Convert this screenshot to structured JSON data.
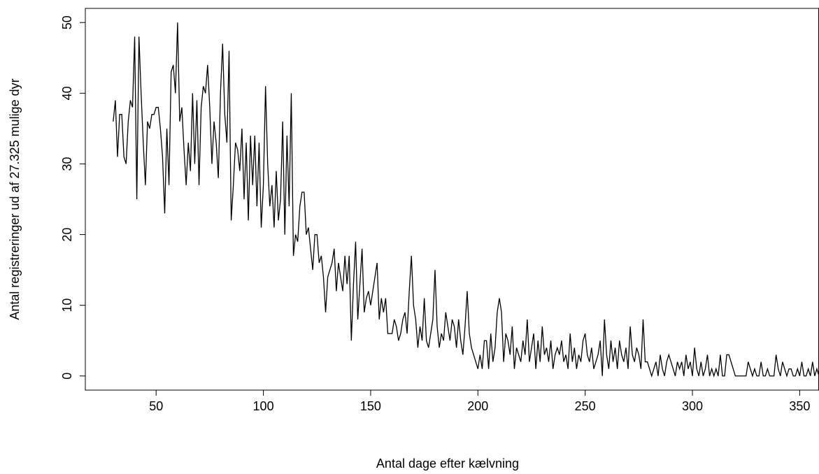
{
  "chart_data": {
    "type": "line",
    "x_label": "Antal dage efter kælvning",
    "y_label": "Antal registreringer ud af 27.325 mulige dyr",
    "x": [
      30,
      31,
      32,
      33,
      34,
      35,
      36,
      37,
      38,
      39,
      40,
      41,
      42,
      43,
      44,
      45,
      46,
      47,
      48,
      49,
      50,
      51,
      52,
      53,
      54,
      55,
      56,
      57,
      58,
      59,
      60,
      61,
      62,
      63,
      64,
      65,
      66,
      67,
      68,
      69,
      70,
      71,
      72,
      73,
      74,
      75,
      76,
      77,
      78,
      79,
      80,
      81,
      82,
      83,
      84,
      85,
      86,
      87,
      88,
      89,
      90,
      91,
      92,
      93,
      94,
      95,
      96,
      97,
      98,
      99,
      100,
      101,
      102,
      103,
      104,
      105,
      106,
      107,
      108,
      109,
      110,
      111,
      112,
      113,
      114,
      115,
      116,
      117,
      118,
      119,
      120,
      121,
      122,
      123,
      124,
      125,
      126,
      127,
      128,
      129,
      130,
      131,
      132,
      133,
      134,
      135,
      136,
      137,
      138,
      139,
      140,
      141,
      142,
      143,
      144,
      145,
      146,
      147,
      148,
      149,
      150,
      151,
      152,
      153,
      154,
      155,
      156,
      157,
      158,
      159,
      160,
      161,
      162,
      163,
      164,
      165,
      166,
      167,
      168,
      169,
      170,
      171,
      172,
      173,
      174,
      175,
      176,
      177,
      178,
      179,
      180,
      181,
      182,
      183,
      184,
      185,
      186,
      187,
      188,
      189,
      190,
      191,
      192,
      193,
      194,
      195,
      196,
      197,
      198,
      199,
      200,
      201,
      202,
      203,
      204,
      205,
      206,
      207,
      208,
      209,
      210,
      211,
      212,
      213,
      214,
      215,
      216,
      217,
      218,
      219,
      220,
      221,
      222,
      223,
      224,
      225,
      226,
      227,
      228,
      229,
      230,
      231,
      232,
      233,
      234,
      235,
      236,
      237,
      238,
      239,
      240,
      241,
      242,
      243,
      244,
      245,
      246,
      247,
      248,
      249,
      250,
      251,
      252,
      253,
      254,
      255,
      256,
      257,
      258,
      259,
      260,
      261,
      262,
      263,
      264,
      265,
      266,
      267,
      268,
      269,
      270,
      271,
      272,
      273,
      274,
      275,
      276,
      277,
      278,
      279,
      280,
      281,
      282,
      283,
      284,
      285,
      286,
      287,
      288,
      289,
      290,
      291,
      292,
      293,
      294,
      295,
      296,
      297,
      298,
      299,
      300,
      301,
      302,
      303,
      304,
      305,
      306,
      307,
      308,
      309,
      310,
      311,
      312,
      313,
      314,
      315,
      316,
      317,
      318,
      319,
      320,
      321,
      322,
      323,
      324,
      325,
      326,
      327,
      328,
      329,
      330,
      331,
      332,
      333,
      334,
      335,
      336,
      337,
      338,
      339,
      340,
      341,
      342,
      343,
      344,
      345,
      346,
      347,
      348,
      349,
      350,
      351,
      352,
      353,
      354,
      355,
      356,
      357,
      358,
      359
    ],
    "values": [
      36,
      39,
      31,
      37,
      37,
      31,
      30,
      36,
      39,
      38,
      48,
      25,
      48,
      40,
      33,
      27,
      36,
      35,
      37,
      37,
      38,
      38,
      35,
      31,
      23,
      35,
      27,
      43,
      44,
      40,
      50,
      36,
      38,
      32,
      27,
      33,
      29,
      40,
      30,
      39,
      27,
      38,
      41,
      40,
      44,
      38,
      30,
      36,
      33,
      28,
      40,
      47,
      37,
      33,
      46,
      22,
      27,
      33,
      32,
      29,
      35,
      25,
      33,
      22,
      34,
      27,
      34,
      24,
      33,
      21,
      27,
      41,
      30,
      24,
      27,
      21,
      29,
      22,
      25,
      36,
      20,
      34,
      24,
      40,
      17,
      20,
      19,
      24,
      26,
      26,
      20,
      21,
      18,
      15,
      20,
      20,
      16,
      17,
      14,
      9,
      14,
      15,
      16,
      18,
      12,
      16,
      14,
      12,
      17,
      13,
      17,
      5,
      13,
      19,
      8,
      13,
      18,
      9,
      11,
      12,
      10,
      12,
      14,
      16,
      8,
      11,
      9,
      11,
      6,
      6,
      6,
      8,
      7,
      5,
      6,
      8,
      9,
      6,
      12,
      17,
      10,
      8,
      4,
      7,
      5,
      11,
      5,
      4,
      6,
      8,
      15,
      7,
      4,
      6,
      5,
      9,
      7,
      5,
      8,
      7,
      4,
      8,
      5,
      3,
      7,
      12,
      6,
      4,
      3,
      2,
      1,
      3,
      1,
      5,
      5,
      1,
      6,
      2,
      4,
      9,
      11,
      9,
      2,
      6,
      5,
      3,
      7,
      1,
      4,
      3,
      2,
      5,
      3,
      8,
      2,
      4,
      6,
      1,
      5,
      2,
      7,
      3,
      4,
      2,
      5,
      1,
      3,
      4,
      3,
      5,
      2,
      3,
      1,
      6,
      2,
      4,
      1,
      3,
      2,
      5,
      6,
      3,
      2,
      4,
      1,
      2,
      3,
      5,
      0,
      8,
      3,
      1,
      5,
      2,
      4,
      1,
      5,
      3,
      2,
      4,
      1,
      7,
      3,
      2,
      4,
      3,
      1,
      8,
      2,
      2,
      1,
      0,
      1,
      2,
      0,
      3,
      1,
      0,
      2,
      3,
      2,
      1,
      0,
      2,
      1,
      2,
      0,
      3,
      1,
      2,
      0,
      4,
      1,
      0,
      2,
      0,
      1,
      3,
      0,
      1,
      0,
      1,
      0,
      3,
      0,
      0,
      3,
      3,
      2,
      1,
      0,
      0,
      0,
      0,
      0,
      0,
      2,
      1,
      0,
      1,
      0,
      0,
      2,
      0,
      0,
      1,
      0,
      0,
      0,
      3,
      1,
      0,
      2,
      1,
      0,
      1,
      1,
      0,
      0,
      1,
      0,
      2,
      0,
      0,
      1,
      0,
      2,
      0,
      1,
      0
    ],
    "color": "#000000",
    "xlim": [
      17,
      359
    ],
    "xticks": [
      50,
      100,
      150,
      200,
      250,
      300,
      350
    ],
    "ylim": [
      -2,
      52
    ],
    "yticks": [
      0,
      10,
      20,
      30,
      40,
      50
    ]
  }
}
